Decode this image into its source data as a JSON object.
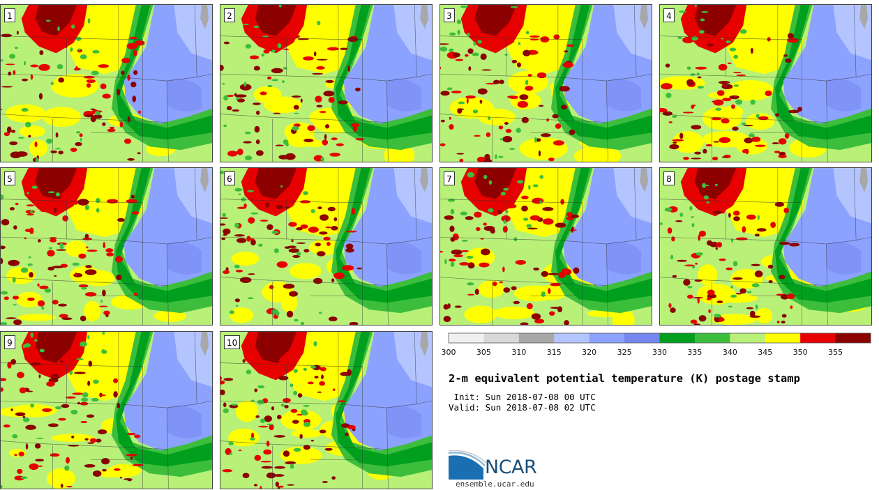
{
  "panels": [
    {
      "label": "1"
    },
    {
      "label": "2"
    },
    {
      "label": "3"
    },
    {
      "label": "4"
    },
    {
      "label": "5"
    },
    {
      "label": "6"
    },
    {
      "label": "7"
    },
    {
      "label": "8"
    },
    {
      "label": "9"
    },
    {
      "label": "10"
    }
  ],
  "colorbar": {
    "ticks": [
      "300",
      "305",
      "310",
      "315",
      "320",
      "325",
      "330",
      "335",
      "340",
      "345",
      "350",
      "355"
    ],
    "colors": [
      "#f0f0f0",
      "#d8d8d8",
      "#a8a8a8",
      "#b4c4ff",
      "#8ca2ff",
      "#7486f0",
      "#00a01e",
      "#3cbe3c",
      "#b8f078",
      "#ffff00",
      "#e60000",
      "#8c0000"
    ]
  },
  "title": "2-m equivalent potential temperature (K) postage stamp",
  "init": " Init: Sun 2018-07-08 00 UTC",
  "valid": "Valid: Sun 2018-07-08 02 UTC",
  "logo": {
    "text": "NCAR"
  },
  "footer": {
    "url": "ensemble.ucar.edu"
  }
}
